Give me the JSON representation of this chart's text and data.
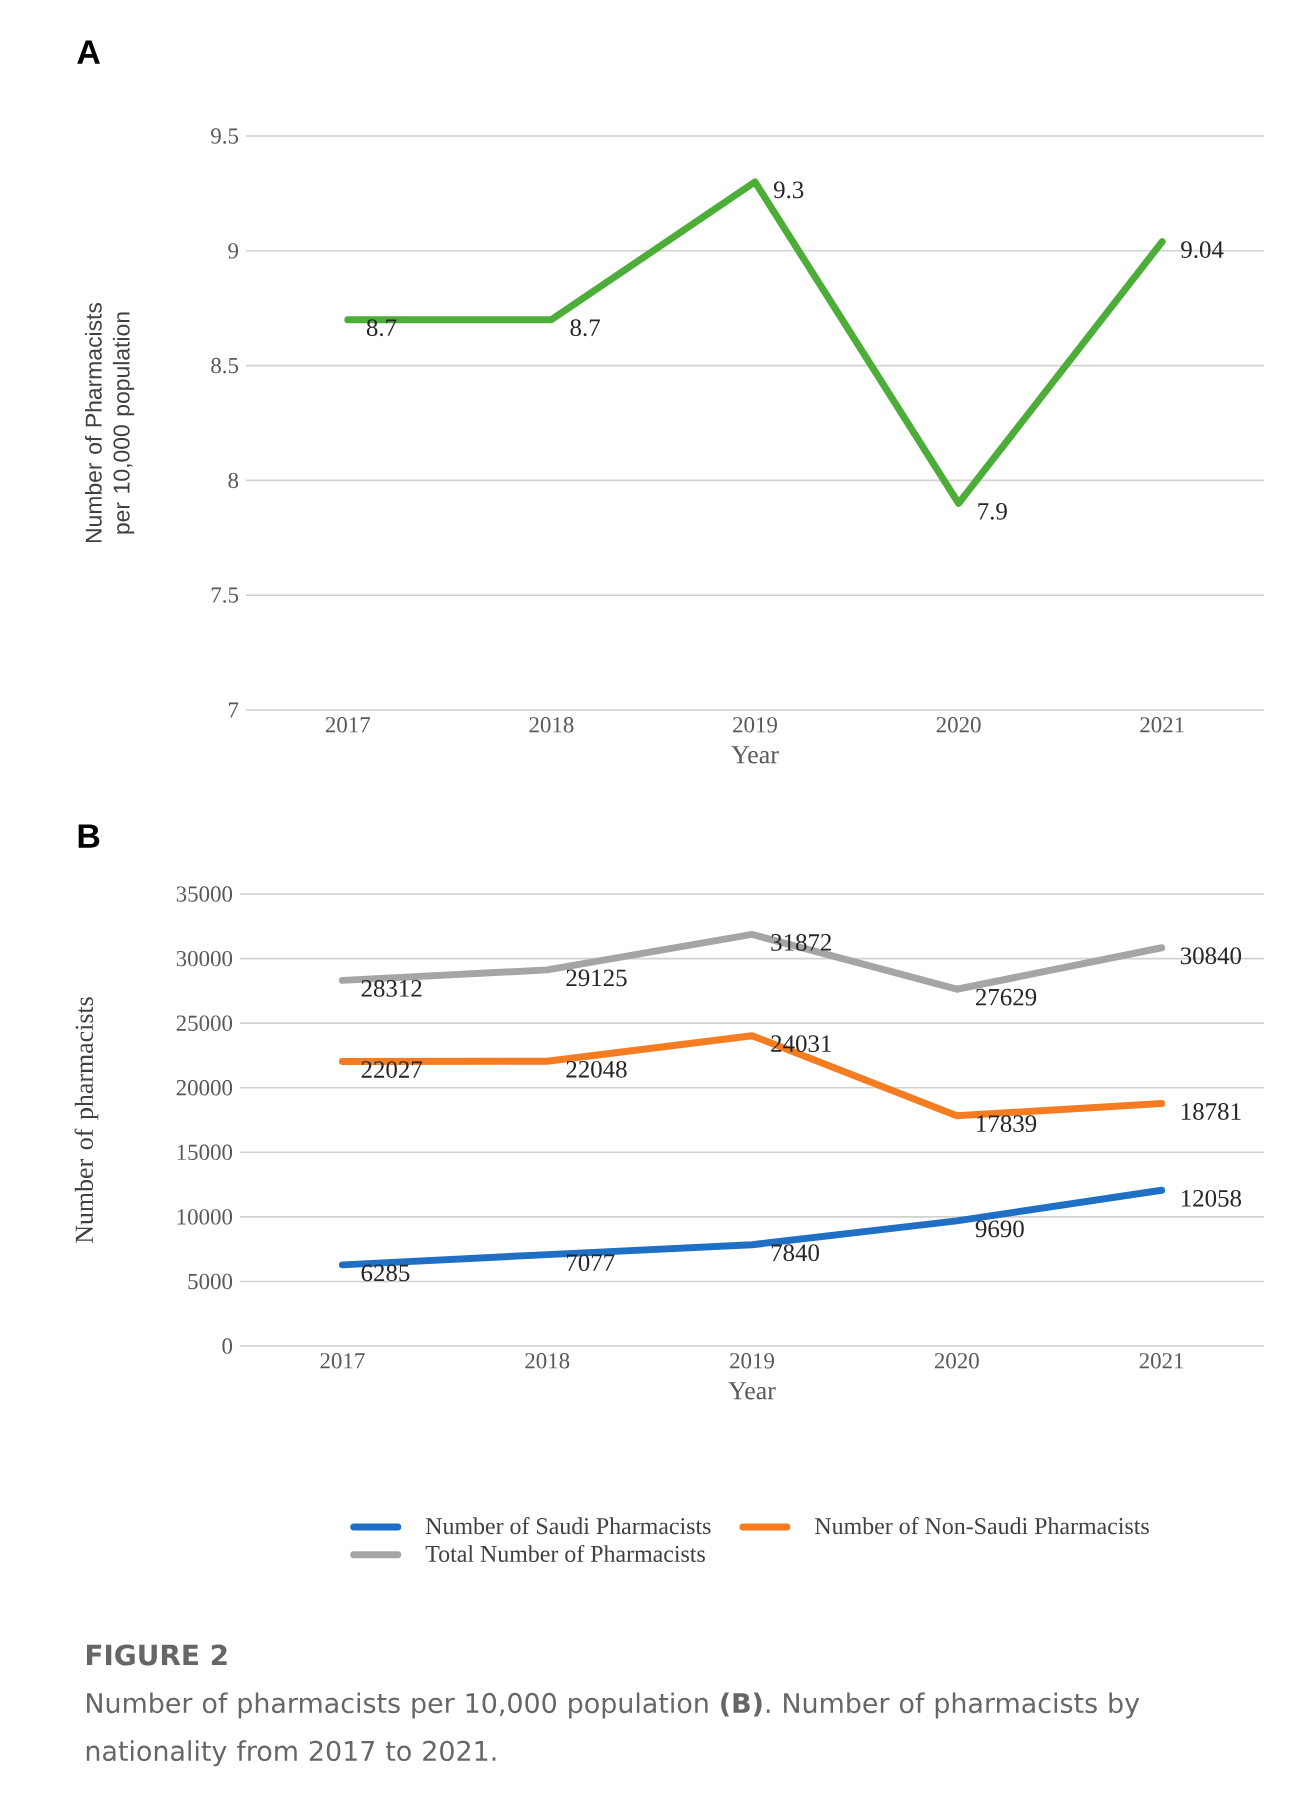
{
  "chart_data": [
    {
      "type": "line",
      "title": "A",
      "xlabel": "Year",
      "ylabel": "Number of Pharmacists per 10,000 population",
      "categories": [
        "2017",
        "2018",
        "2019",
        "2020",
        "2021"
      ],
      "series": [
        {
          "color": "#4cad38",
          "values": [
            8.7,
            8.7,
            9.3,
            7.9,
            9.04
          ]
        }
      ],
      "ylim": [
        7,
        9.5
      ],
      "yticks": [
        7,
        7.5,
        8,
        8.5,
        9,
        9.5
      ],
      "grid": "y",
      "data_labels": true,
      "marker": "none",
      "line_style": "solid"
    },
    {
      "type": "line",
      "title": "B",
      "xlabel": "Year",
      "ylabel": "Number of pharmacists",
      "categories": [
        "2017",
        "2018",
        "2019",
        "2020",
        "2021"
      ],
      "series": [
        {
          "name": "Number of Saudi Pharmacists",
          "color": "#1f6fc5",
          "values": [
            6285,
            7077,
            7840,
            9690,
            12058
          ]
        },
        {
          "name": "Number of Non-Saudi Pharmacists",
          "color": "#f57c21",
          "values": [
            22027,
            22048,
            24031,
            17839,
            18781
          ]
        },
        {
          "name": "Total Number of Pharmacists",
          "color": "#a5a5a5",
          "values": [
            28312,
            29125,
            31872,
            27629,
            30840
          ]
        }
      ],
      "ylim": [
        0,
        35000
      ],
      "yticks": [
        0,
        5000,
        10000,
        15000,
        20000,
        25000,
        30000,
        35000
      ],
      "grid": "y",
      "data_labels": true,
      "marker": "none",
      "line_style": "solid",
      "legend": "bottom",
      "annotations": [
        "FIGURE 2",
        "Number of pharmacists per 10,000 population **(B)**. Number of pharmacists by nationality from 2017 to 2021."
      ]
    }
  ]
}
